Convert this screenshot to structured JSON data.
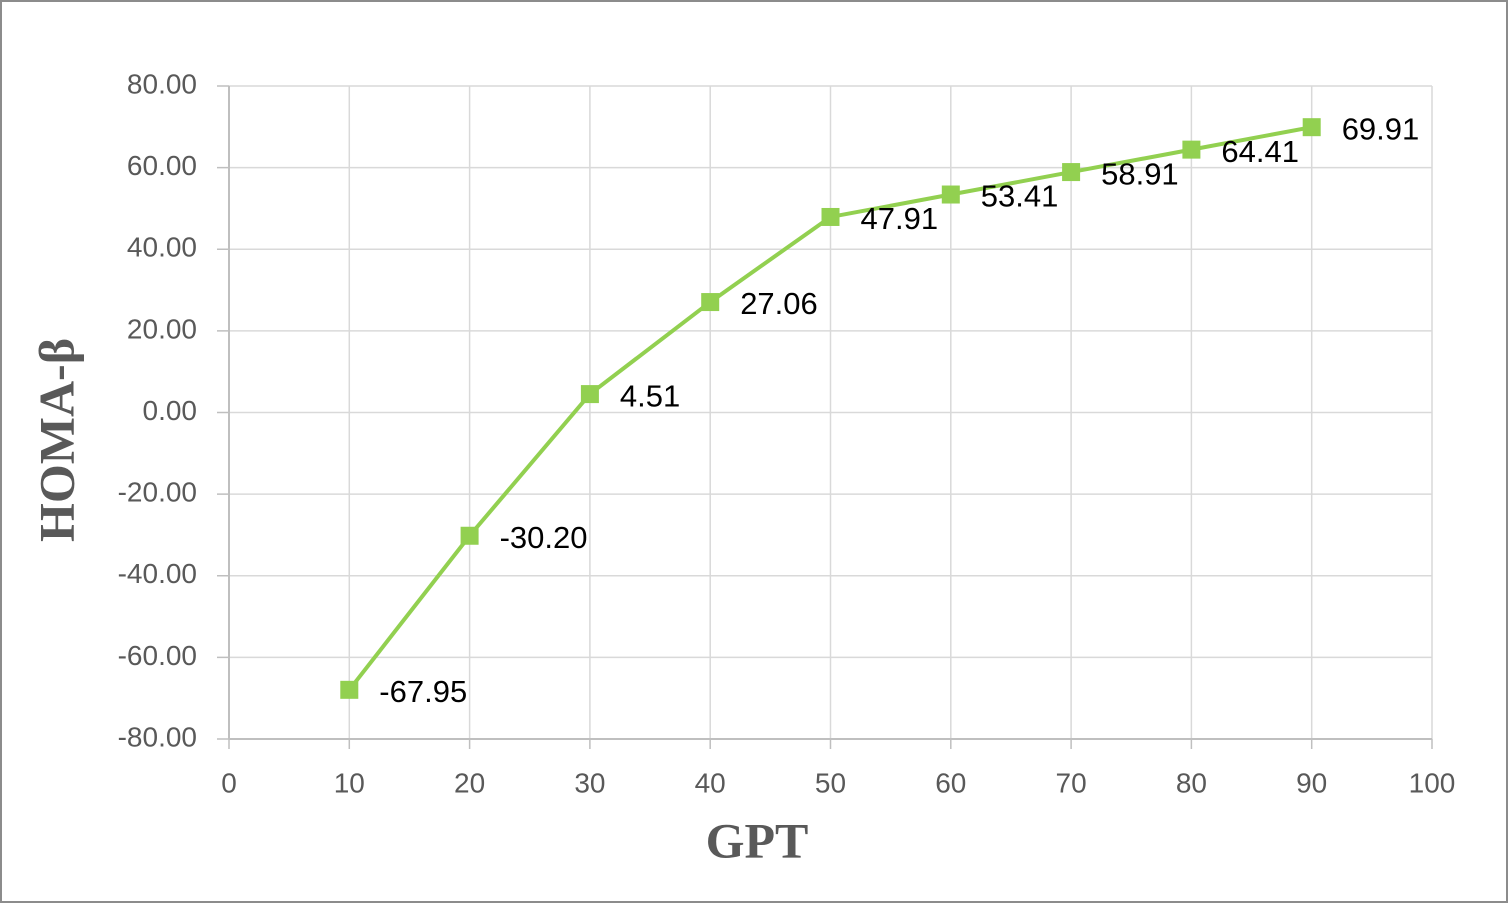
{
  "chart_data": {
    "type": "line",
    "x_label": "GPT",
    "y_label": "HOMA-β",
    "x": [
      10,
      20,
      30,
      40,
      50,
      60,
      70,
      80,
      90
    ],
    "series": [
      {
        "color": "#92d050",
        "values": [
          -67.95,
          -30.2,
          4.51,
          27.06,
          47.91,
          53.41,
          58.91,
          64.41,
          69.91
        ],
        "value_labels": [
          "-67.95",
          "-30.20",
          "4.51",
          "27.06",
          "47.91",
          "53.41",
          "58.91",
          "64.41",
          "69.91"
        ]
      }
    ],
    "xlim": [
      0,
      100
    ],
    "xticks": [
      0,
      10,
      20,
      30,
      40,
      50,
      60,
      70,
      80,
      90,
      100
    ],
    "ylim": [
      -80,
      80
    ],
    "yticks": [
      {
        "value": -80,
        "label": "-80.00"
      },
      {
        "value": -60,
        "label": "-60.00"
      },
      {
        "value": -40,
        "label": "-40.00"
      },
      {
        "value": -20,
        "label": "-20.00"
      },
      {
        "value": 0,
        "label": "0.00"
      },
      {
        "value": 20,
        "label": "20.00"
      },
      {
        "value": 40,
        "label": "40.00"
      },
      {
        "value": 60,
        "label": "60.00"
      },
      {
        "value": 80,
        "label": "80.00"
      }
    ],
    "grid": true
  }
}
